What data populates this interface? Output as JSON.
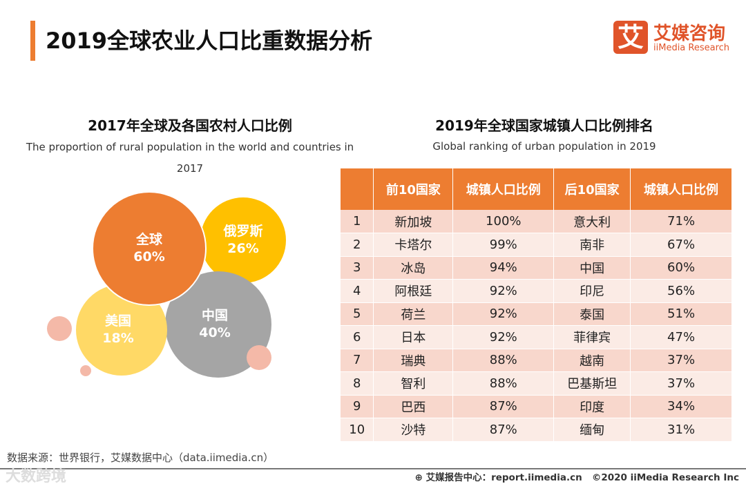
{
  "header": {
    "title": "2019全球农业人口比重数据分析",
    "logo_mark": "艾",
    "logo_cn": "艾媒咨询",
    "logo_en": "iiMedia Research"
  },
  "left": {
    "title_cn": "2017年全球及各国农村人口比例",
    "title_en": "The proportion of rural population in the world and countries in 2017",
    "bubbles": [
      {
        "label": "全球",
        "value": "60%",
        "color": "#ed7d31"
      },
      {
        "label": "俄罗斯",
        "value": "26%",
        "color": "#ffc000"
      },
      {
        "label": "中国",
        "value": "40%",
        "color": "#a5a5a5"
      },
      {
        "label": "美国",
        "value": "18%",
        "color": "#ffd966"
      }
    ]
  },
  "right": {
    "title_cn": "2019年全球国家城镇人口比例排名",
    "title_en": "Global ranking of urban population in 2019",
    "headers": [
      "",
      "前10国家",
      "城镇人口比例",
      "后10国家",
      "城镇人口比例"
    ],
    "rows": [
      [
        "1",
        "新加坡",
        "100%",
        "意大利",
        "71%"
      ],
      [
        "2",
        "卡塔尔",
        "99%",
        "南非",
        "67%"
      ],
      [
        "3",
        "冰岛",
        "94%",
        "中国",
        "60%"
      ],
      [
        "4",
        "阿根廷",
        "92%",
        "印尼",
        "56%"
      ],
      [
        "5",
        "荷兰",
        "92%",
        "泰国",
        "51%"
      ],
      [
        "6",
        "日本",
        "92%",
        "菲律宾",
        "47%"
      ],
      [
        "7",
        "瑞典",
        "88%",
        "越南",
        "37%"
      ],
      [
        "8",
        "智利",
        "88%",
        "巴基斯坦",
        "37%"
      ],
      [
        "9",
        "巴西",
        "87%",
        "印度",
        "34%"
      ],
      [
        "10",
        "沙特",
        "87%",
        "缅甸",
        "31%"
      ]
    ]
  },
  "footer": {
    "source": "数据来源：世界银行，艾媒数据中心（data.iimedia.cn）",
    "watermark": "大数跨境",
    "report": "艾媒报告中心：report.iimedia.cn",
    "copyright": "©2020  iiMedia Research  Inc"
  }
}
